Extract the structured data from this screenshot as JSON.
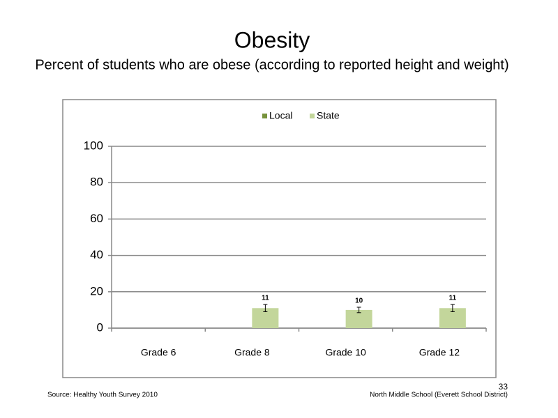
{
  "slide": {
    "source": "Source: Healthy Youth Survey 2010",
    "school": "North Middle  School (Everett School District)",
    "page_number": "33"
  },
  "chart_data": {
    "type": "bar",
    "title": "Obesity",
    "subtitle": "Percent of students who are obese (according to reported height and weight)",
    "categories": [
      "Grade 6",
      "Grade 8",
      "Grade 10",
      "Grade 12"
    ],
    "series": [
      {
        "name": "Local",
        "color": "#77933c",
        "values": [
          null,
          null,
          null,
          null
        ]
      },
      {
        "name": "State",
        "color": "#c3d69b",
        "values": [
          null,
          11,
          10,
          11
        ],
        "errors": [
          null,
          2,
          1.5,
          2
        ]
      }
    ],
    "ylim": [
      0,
      100
    ],
    "yticks": [
      0,
      20,
      40,
      60,
      80,
      100
    ],
    "grid": true,
    "legend": "top"
  }
}
